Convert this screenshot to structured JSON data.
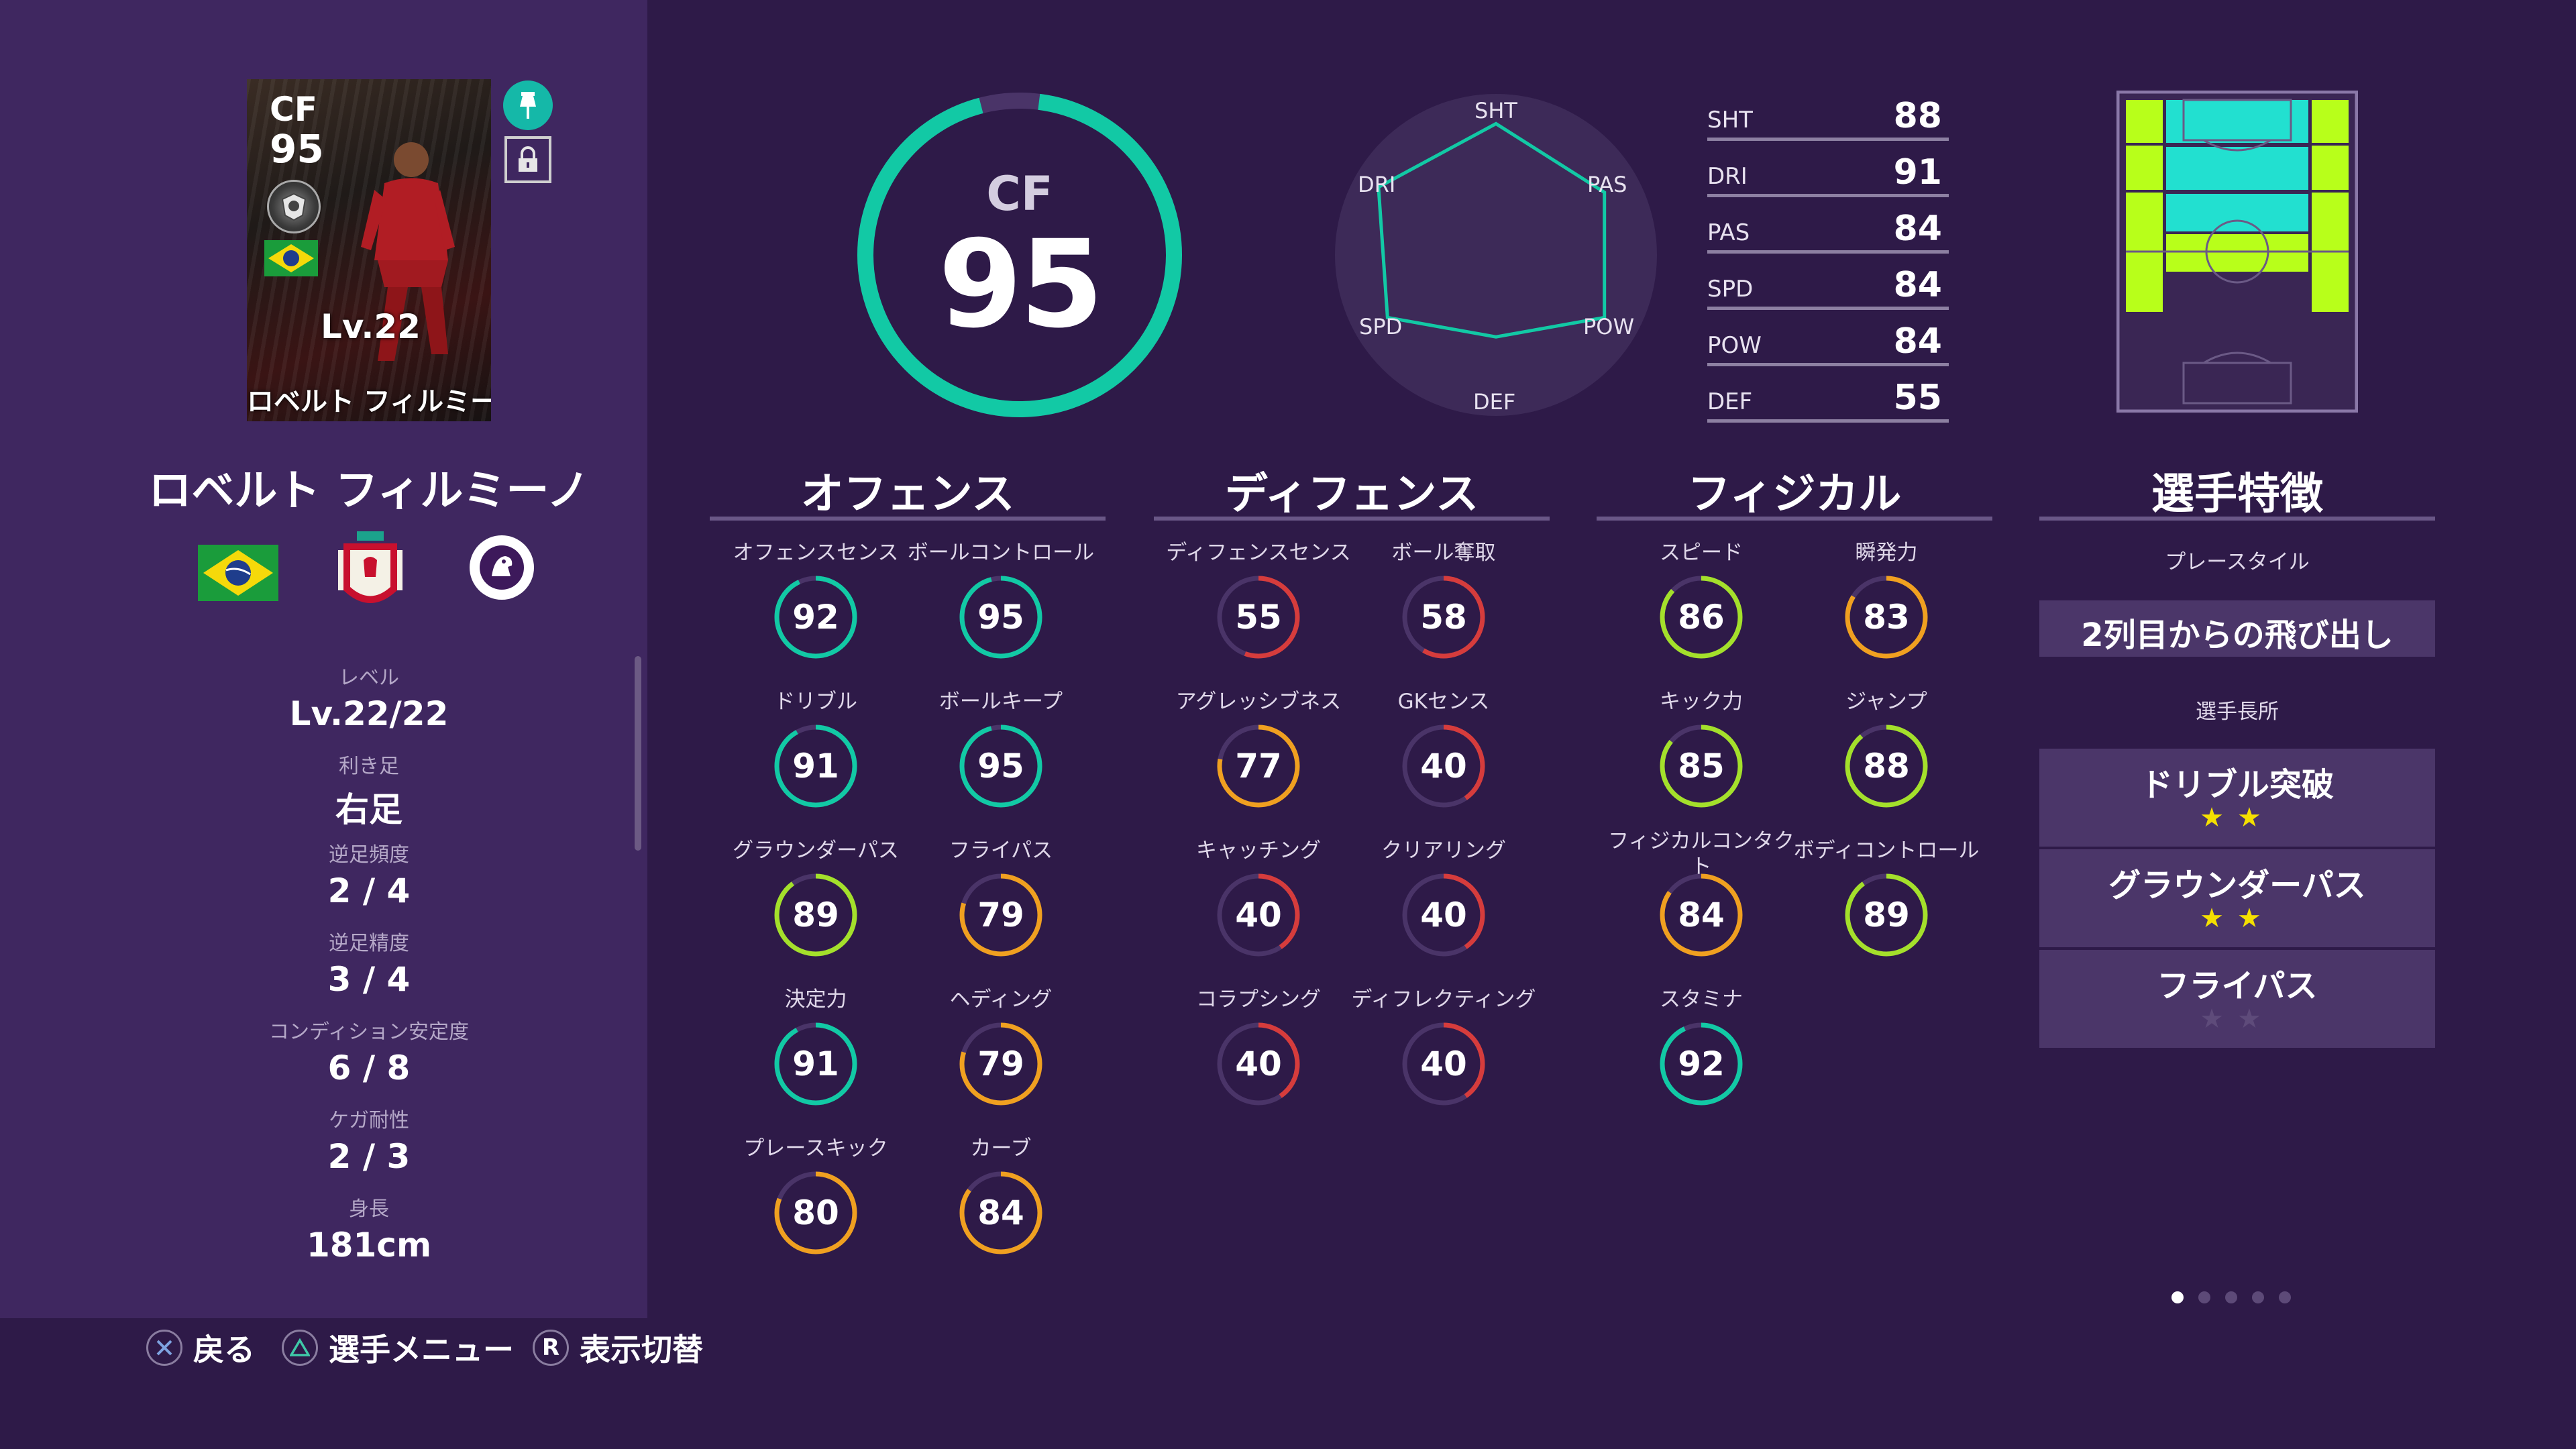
{
  "card": {
    "position": "CF",
    "overall": "95",
    "level": "Lv.22",
    "name": "ロベルト フィルミーノ"
  },
  "player": {
    "name": "ロベルト フィルミーノ",
    "info": [
      {
        "label": "レベル",
        "value": "Lv.22/22"
      },
      {
        "label": "利き足",
        "value": "右足"
      },
      {
        "label": "逆足頻度",
        "value": "2 / 4"
      },
      {
        "label": "逆足精度",
        "value": "3 / 4"
      },
      {
        "label": "コンディション安定度",
        "value": "6 / 8"
      },
      {
        "label": "ケガ耐性",
        "value": "2 / 3"
      },
      {
        "label": "身長",
        "value": "181cm"
      }
    ]
  },
  "rating": {
    "position": "CF",
    "overall": "95"
  },
  "radar": {
    "labels": [
      "SHT",
      "PAS",
      "POW",
      "DEF",
      "SPD",
      "DRI"
    ],
    "values": [
      88,
      84,
      84,
      55,
      84,
      91
    ]
  },
  "summary": [
    {
      "label": "SHT",
      "value": "88"
    },
    {
      "label": "DRI",
      "value": "91"
    },
    {
      "label": "PAS",
      "value": "84"
    },
    {
      "label": "SPD",
      "value": "84"
    },
    {
      "label": "POW",
      "value": "84"
    },
    {
      "label": "DEF",
      "value": "55"
    }
  ],
  "sections": {
    "offense": {
      "title": "オフェンス",
      "stats": [
        {
          "label": "オフェンスセンス",
          "value": "92"
        },
        {
          "label": "ボールコントロール",
          "value": "95"
        },
        {
          "label": "ドリブル",
          "value": "91"
        },
        {
          "label": "ボールキープ",
          "value": "95"
        },
        {
          "label": "グラウンダーパス",
          "value": "89"
        },
        {
          "label": "フライパス",
          "value": "79"
        },
        {
          "label": "決定力",
          "value": "91"
        },
        {
          "label": "ヘディング",
          "value": "79"
        },
        {
          "label": "プレースキック",
          "value": "80"
        },
        {
          "label": "カーブ",
          "value": "84"
        }
      ]
    },
    "defense": {
      "title": "ディフェンス",
      "stats": [
        {
          "label": "ディフェンスセンス",
          "value": "55"
        },
        {
          "label": "ボール奪取",
          "value": "58"
        },
        {
          "label": "アグレッシブネス",
          "value": "77"
        },
        {
          "label": "GKセンス",
          "value": "40"
        },
        {
          "label": "キャッチング",
          "value": "40"
        },
        {
          "label": "クリアリング",
          "value": "40"
        },
        {
          "label": "コラプシング",
          "value": "40"
        },
        {
          "label": "ディフレクティング",
          "value": "40"
        }
      ]
    },
    "physical": {
      "title": "フィジカル",
      "stats": [
        {
          "label": "スピード",
          "value": "86"
        },
        {
          "label": "瞬発力",
          "value": "83"
        },
        {
          "label": "キック力",
          "value": "85"
        },
        {
          "label": "ジャンプ",
          "value": "88"
        },
        {
          "label": "フィジカルコンタクト",
          "value": "84"
        },
        {
          "label": "ボディコントロール",
          "value": "89"
        },
        {
          "label": "スタミナ",
          "value": "92"
        }
      ]
    },
    "traits": {
      "title": "選手特徴",
      "playstyle_label": "プレースタイル",
      "playstyle": "2列目からの飛び出し",
      "abilities_label": "選手長所",
      "abilities": [
        {
          "name": "ドリブル突破",
          "stars": 2
        },
        {
          "name": "グラウンダーパス",
          "stars": 2
        },
        {
          "name": "フライパス",
          "stars": 0
        }
      ]
    }
  },
  "footer": {
    "back": "戻る",
    "menu": "選手メニュー",
    "toggle": "表示切替",
    "toggle_key": "R"
  },
  "pages": {
    "count": 5,
    "current": 1
  },
  "colors": {
    "bg": "#2e1a48",
    "panel": "#3f2760",
    "teal": "#12c9a5",
    "green": "#a4e02b",
    "orange": "#f0a020",
    "red": "#d63c3c",
    "pitch_hl": "#b8ff1a",
    "pitch_cyan": "#22e0d0"
  }
}
